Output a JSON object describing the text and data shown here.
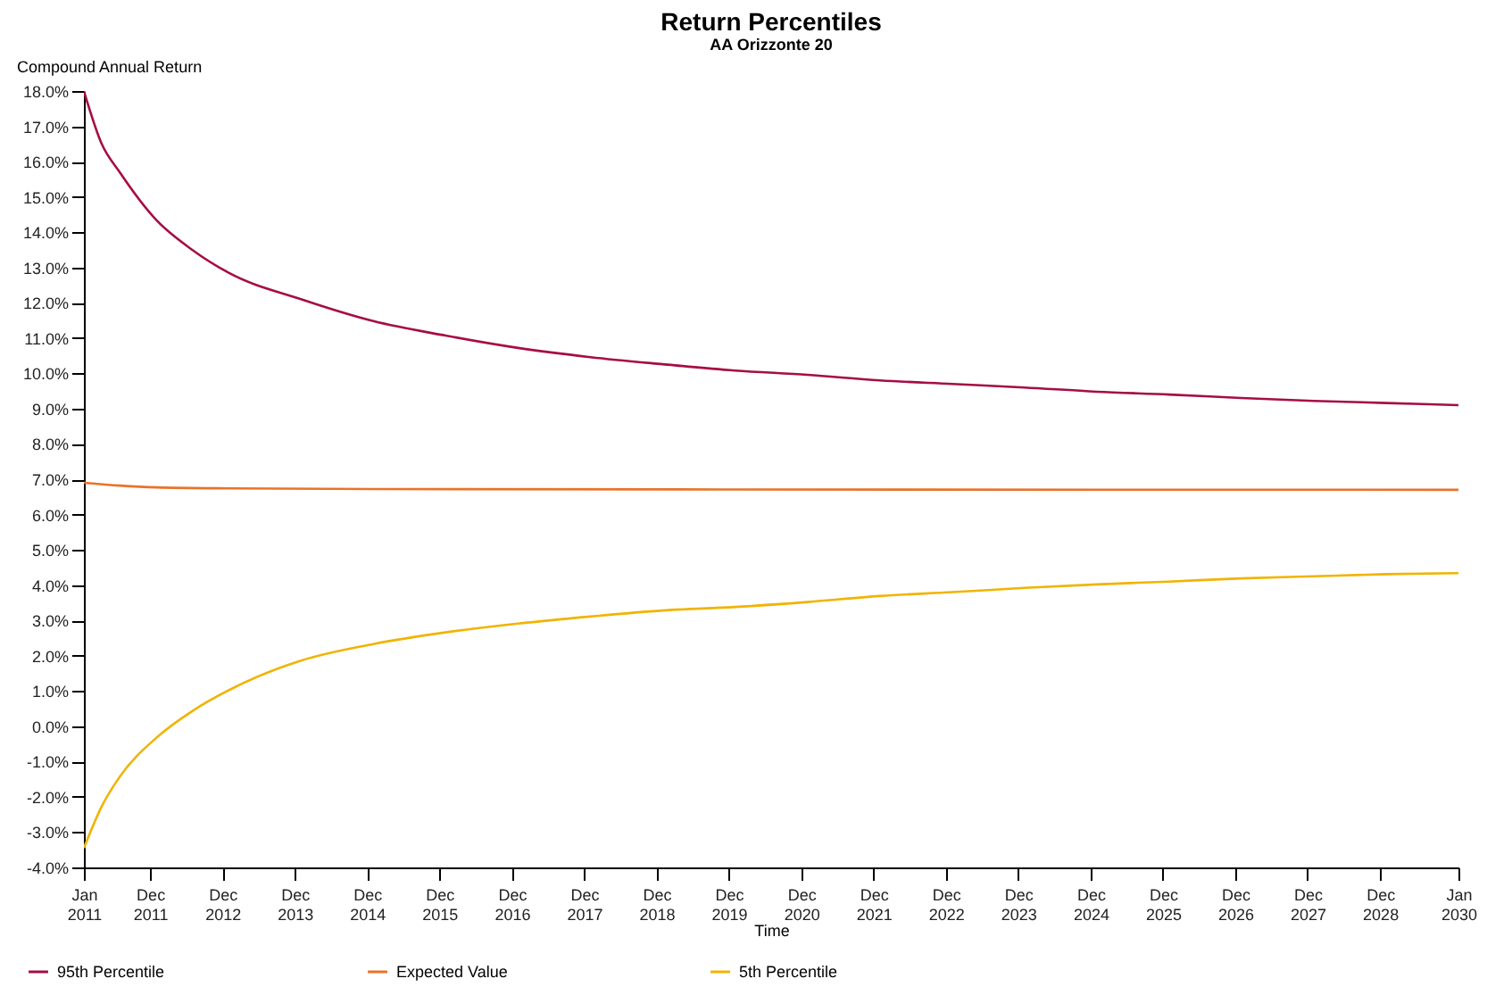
{
  "chart_data": {
    "type": "line",
    "title": "Return Percentiles",
    "subtitle": "AA Orizzonte 20",
    "xlabel": "Time",
    "ylabel": "Compound Annual Return",
    "series": [
      {
        "name": "95th Percentile",
        "color": "#a50d45",
        "x": [
          "2011-01",
          "2011-04",
          "2011-07",
          "2012-01",
          "2012-07",
          "2013-01",
          "2014-01",
          "2015-01",
          "2016-01",
          "2017-01",
          "2018-01",
          "2019-01",
          "2020-01",
          "2021-01",
          "2022-01",
          "2023-01",
          "2024-01",
          "2025-01",
          "2026-01",
          "2027-01",
          "2028-01",
          "2029-01",
          "2030-01"
        ],
        "values": [
          18.0,
          16.5,
          15.7,
          14.35,
          13.5,
          12.85,
          12.1,
          11.48,
          11.07,
          10.72,
          10.46,
          10.26,
          10.08,
          9.96,
          9.8,
          9.7,
          9.6,
          9.48,
          9.4,
          9.3,
          9.22,
          9.16,
          9.1
        ]
      },
      {
        "name": "Expected Value",
        "color": "#e8732a",
        "x": [
          "2011-01",
          "2011-07",
          "2012-01",
          "2013-01",
          "2015-01",
          "2020-01",
          "2030-01"
        ],
        "values": [
          6.9,
          6.82,
          6.77,
          6.74,
          6.72,
          6.71,
          6.7
        ]
      },
      {
        "name": "5th Percentile",
        "color": "#f0b400",
        "x": [
          "2011-01",
          "2011-04",
          "2011-07",
          "2012-01",
          "2012-07",
          "2013-01",
          "2014-01",
          "2015-01",
          "2016-01",
          "2017-01",
          "2018-01",
          "2019-01",
          "2020-01",
          "2021-01",
          "2022-01",
          "2023-01",
          "2024-01",
          "2025-01",
          "2026-01",
          "2027-01",
          "2028-01",
          "2029-01",
          "2030-01"
        ],
        "values": [
          -3.45,
          -2.27,
          -1.43,
          -0.33,
          0.43,
          1.02,
          1.86,
          2.33,
          2.66,
          2.91,
          3.11,
          3.28,
          3.38,
          3.52,
          3.69,
          3.8,
          3.92,
          4.02,
          4.1,
          4.19,
          4.25,
          4.31,
          4.34
        ]
      }
    ],
    "xlim": [
      "2011-01",
      "2030-01"
    ],
    "xticks": [
      {
        "value": "2011-01",
        "label": "Jan 2011"
      },
      {
        "value": "2011-12",
        "label": "Dec 2011"
      },
      {
        "value": "2012-12",
        "label": "Dec 2012"
      },
      {
        "value": "2013-12",
        "label": "Dec 2013"
      },
      {
        "value": "2014-12",
        "label": "Dec 2014"
      },
      {
        "value": "2015-12",
        "label": "Dec 2015"
      },
      {
        "value": "2016-12",
        "label": "Dec 2016"
      },
      {
        "value": "2017-12",
        "label": "Dec 2017"
      },
      {
        "value": "2018-12",
        "label": "Dec 2018"
      },
      {
        "value": "2019-12",
        "label": "Dec 2019"
      },
      {
        "value": "2020-12",
        "label": "Dec 2020"
      },
      {
        "value": "2021-12",
        "label": "Dec 2021"
      },
      {
        "value": "2022-12",
        "label": "Dec 2022"
      },
      {
        "value": "2023-12",
        "label": "Dec 2023"
      },
      {
        "value": "2024-12",
        "label": "Dec 2024"
      },
      {
        "value": "2025-12",
        "label": "Dec 2025"
      },
      {
        "value": "2026-12",
        "label": "Dec 2026"
      },
      {
        "value": "2027-12",
        "label": "Dec 2027"
      },
      {
        "value": "2028-12",
        "label": "Dec 2028"
      },
      {
        "value": "2030-01",
        "label": "Jan 2030"
      }
    ],
    "ylim": [
      -4,
      18
    ],
    "yticks": [
      {
        "value": -4,
        "label": "-4.0%"
      },
      {
        "value": -3,
        "label": "-3.0%"
      },
      {
        "value": -2,
        "label": "-2.0%"
      },
      {
        "value": -1,
        "label": "-1.0%"
      },
      {
        "value": 0,
        "label": "0.0%"
      },
      {
        "value": 1,
        "label": "1.0%"
      },
      {
        "value": 2,
        "label": "2.0%"
      },
      {
        "value": 3,
        "label": "3.0%"
      },
      {
        "value": 4,
        "label": "4.0%"
      },
      {
        "value": 5,
        "label": "5.0%"
      },
      {
        "value": 6,
        "label": "6.0%"
      },
      {
        "value": 7,
        "label": "7.0%"
      },
      {
        "value": 8,
        "label": "8.0%"
      },
      {
        "value": 9,
        "label": "9.0%"
      },
      {
        "value": 10,
        "label": "10.0%"
      },
      {
        "value": 11,
        "label": "11.0%"
      },
      {
        "value": 12,
        "label": "12.0%"
      },
      {
        "value": 13,
        "label": "13.0%"
      },
      {
        "value": 14,
        "label": "14.0%"
      },
      {
        "value": 15,
        "label": "15.0%"
      },
      {
        "value": 16,
        "label": "16.0%"
      },
      {
        "value": 17,
        "label": "17.0%"
      },
      {
        "value": 18,
        "label": "18.0%"
      }
    ],
    "grid": false,
    "legend": "bottom",
    "marker": "none",
    "line_style": "solid"
  }
}
